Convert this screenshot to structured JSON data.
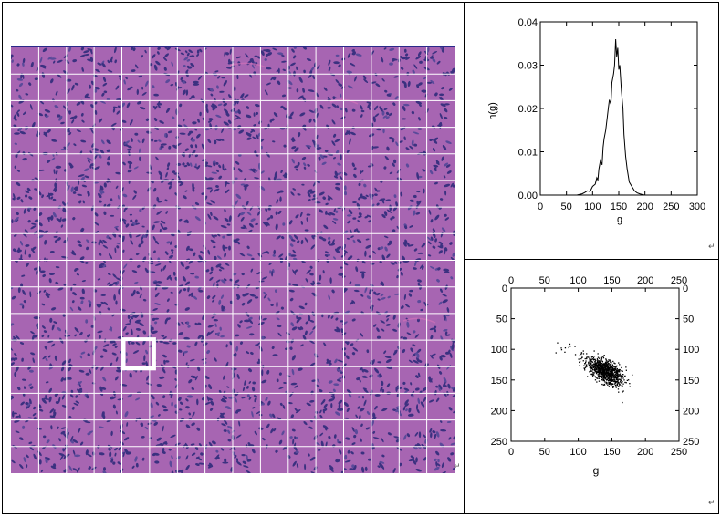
{
  "figure": {
    "return_mark": "↵",
    "tissue_image": {
      "grid_rows": 16,
      "grid_cols": 16,
      "highlight_cell": {
        "row": 11,
        "col": 4
      },
      "colors": {
        "stroma": "#a765b2",
        "nucleus": "#3b3180",
        "grid": "#ffffff",
        "highlight": "#ffffff"
      }
    }
  },
  "chart_data": [
    {
      "type": "line",
      "title": "",
      "xlabel": "g",
      "ylabel": "h(g)",
      "xlim": [
        0,
        300
      ],
      "ylim": [
        0,
        0.04
      ],
      "x_ticks": [
        "0",
        "50",
        "100",
        "150",
        "200",
        "250",
        "300"
      ],
      "y_ticks": [
        "0.00",
        "0.01",
        "0.02",
        "0.03",
        "0.04"
      ],
      "x": [
        60,
        70,
        80,
        85,
        90,
        95,
        100,
        105,
        108,
        110,
        112,
        115,
        118,
        120,
        122,
        125,
        128,
        130,
        132,
        135,
        137,
        140,
        142,
        144,
        146,
        148,
        150,
        152,
        155,
        158,
        160,
        163,
        166,
        170,
        175,
        180,
        185,
        190,
        195,
        200,
        210
      ],
      "values": [
        0,
        0,
        0.0003,
        0.0006,
        0.001,
        0.0008,
        0.002,
        0.0025,
        0.004,
        0.0035,
        0.006,
        0.008,
        0.007,
        0.011,
        0.013,
        0.015,
        0.018,
        0.02,
        0.022,
        0.021,
        0.026,
        0.028,
        0.03,
        0.036,
        0.032,
        0.034,
        0.029,
        0.03,
        0.024,
        0.02,
        0.014,
        0.009,
        0.006,
        0.003,
        0.002,
        0.001,
        0.0005,
        0.0003,
        0.0001,
        0,
        0
      ]
    },
    {
      "type": "scatter",
      "title": "",
      "xlabel": "g",
      "ylabel": "",
      "xlim": [
        0,
        250
      ],
      "ylim": [
        0,
        250
      ],
      "y_inverted": true,
      "x_ticks": [
        "0",
        "50",
        "100",
        "150",
        "200",
        "250"
      ],
      "y_ticks": [
        "0",
        "50",
        "100",
        "150",
        "200",
        "250"
      ],
      "cluster": {
        "center": [
          140,
          135
        ],
        "spread": [
          13,
          11
        ],
        "correlation": 0.55,
        "n_points": 900,
        "outliers_from": [
          70,
          90
        ]
      }
    }
  ]
}
